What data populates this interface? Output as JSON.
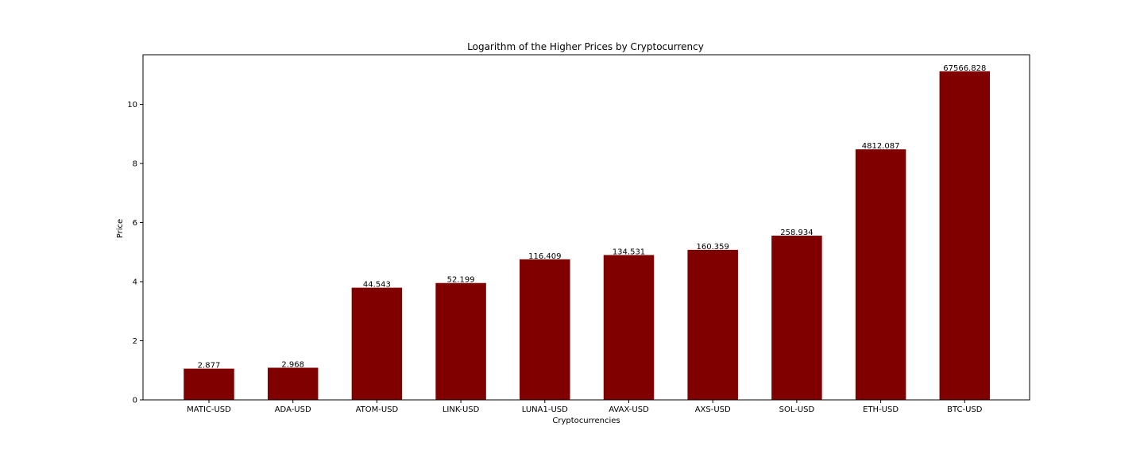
{
  "chart_data": {
    "type": "bar",
    "title": "Logarithm of the Higher Prices by Cryptocurrency",
    "xlabel": "Cryptocurrencies",
    "ylabel": "Price",
    "categories": [
      "MATIC-USD",
      "ADA-USD",
      "ATOM-USD",
      "LINK-USD",
      "LUNA1-USD",
      "AVAX-USD",
      "AXS-USD",
      "SOL-USD",
      "ETH-USD",
      "BTC-USD"
    ],
    "values": [
      1.057,
      1.088,
      3.796,
      3.955,
      4.757,
      4.902,
      5.077,
      5.557,
      8.479,
      11.121
    ],
    "value_labels": [
      "2.877",
      "2.968",
      "44.543",
      "52.199",
      "116.409",
      "134.531",
      "160.359",
      "258.934",
      "4812.087",
      "67566.828"
    ],
    "ylim": [
      0,
      11.68
    ],
    "yticks": [
      0,
      2,
      4,
      6,
      8,
      10
    ],
    "grid": false,
    "bar_color": "#800000"
  }
}
